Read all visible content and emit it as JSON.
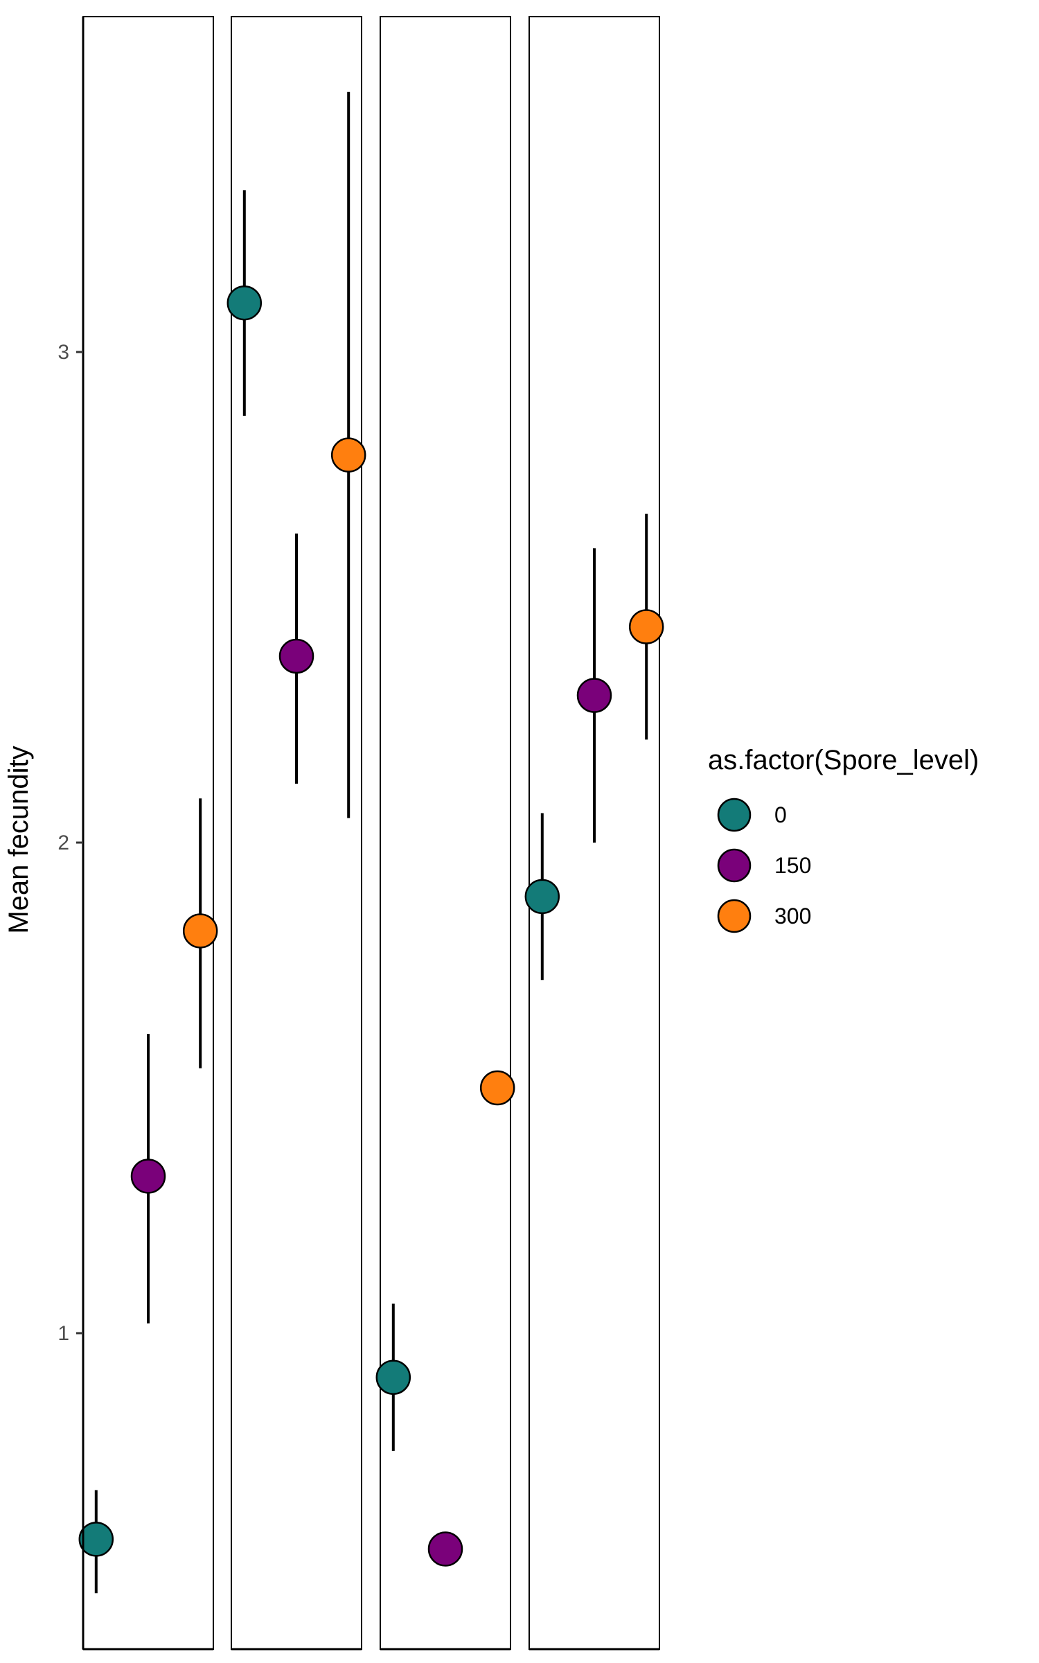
{
  "chart_data": {
    "type": "scatter",
    "ylabel": "Mean fecundity",
    "y_ticks": [
      1,
      2,
      3
    ],
    "ylim": [
      0.4,
      3.7
    ],
    "grid": false,
    "legend": {
      "title": "as.factor(Spore_level)",
      "placement": "right",
      "entries": [
        {
          "label": "0",
          "color": "#137B78"
        },
        {
          "label": "150",
          "color": "#7A017A"
        },
        {
          "label": "300",
          "color": "#FF7F0F"
        }
      ]
    },
    "panels": [
      {
        "points": [
          {
            "series": "0",
            "y": 0.58,
            "ymin": 0.47,
            "ymax": 0.68
          },
          {
            "series": "150",
            "y": 1.32,
            "ymin": 1.02,
            "ymax": 1.61
          },
          {
            "series": "300",
            "y": 1.82,
            "ymin": 1.54,
            "ymax": 2.09
          }
        ]
      },
      {
        "points": [
          {
            "series": "0",
            "y": 3.1,
            "ymin": 2.87,
            "ymax": 3.33
          },
          {
            "series": "150",
            "y": 2.38,
            "ymin": 2.12,
            "ymax": 2.63
          },
          {
            "series": "300",
            "y": 2.79,
            "ymin": 2.05,
            "ymax": 3.53
          }
        ]
      },
      {
        "points": [
          {
            "series": "0",
            "y": 0.91,
            "ymin": 0.76,
            "ymax": 1.06
          },
          {
            "series": "150",
            "y": 0.56,
            "ymin": null,
            "ymax": null
          },
          {
            "series": "300",
            "y": 1.5,
            "ymin": null,
            "ymax": null
          }
        ]
      },
      {
        "points": [
          {
            "series": "0",
            "y": 1.89,
            "ymin": 1.72,
            "ymax": 2.06
          },
          {
            "series": "150",
            "y": 2.3,
            "ymin": 2.0,
            "ymax": 2.6
          },
          {
            "series": "300",
            "y": 2.44,
            "ymin": 2.21,
            "ymax": 2.67
          }
        ]
      }
    ]
  }
}
